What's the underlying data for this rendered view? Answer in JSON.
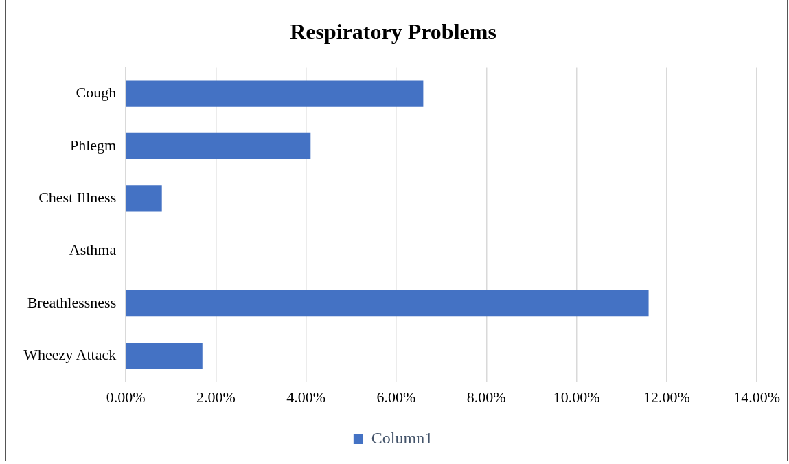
{
  "chart_data": {
    "type": "bar",
    "orientation": "horizontal",
    "title": "Respiratory Problems",
    "categories": [
      "Cough",
      "Phlegm",
      "Chest Illness",
      "Asthma",
      "Breathlessness",
      "Wheezy Attack"
    ],
    "series": [
      {
        "name": "Column1",
        "color": "#4472c4",
        "values": [
          6.6,
          4.1,
          0.8,
          0,
          11.6,
          1.7
        ]
      }
    ],
    "xlim": [
      0,
      14
    ],
    "xticks": [
      {
        "value": 0,
        "label": "0.00%"
      },
      {
        "value": 2,
        "label": "2.00%"
      },
      {
        "value": 4,
        "label": "4.00%"
      },
      {
        "value": 6,
        "label": "6.00%"
      },
      {
        "value": 8,
        "label": "8.00%"
      },
      {
        "value": 10,
        "label": "10.00%"
      },
      {
        "value": 12,
        "label": "12.00%"
      },
      {
        "value": 14,
        "label": "14.00%"
      }
    ],
    "grid": "x",
    "legend": "bottom"
  }
}
